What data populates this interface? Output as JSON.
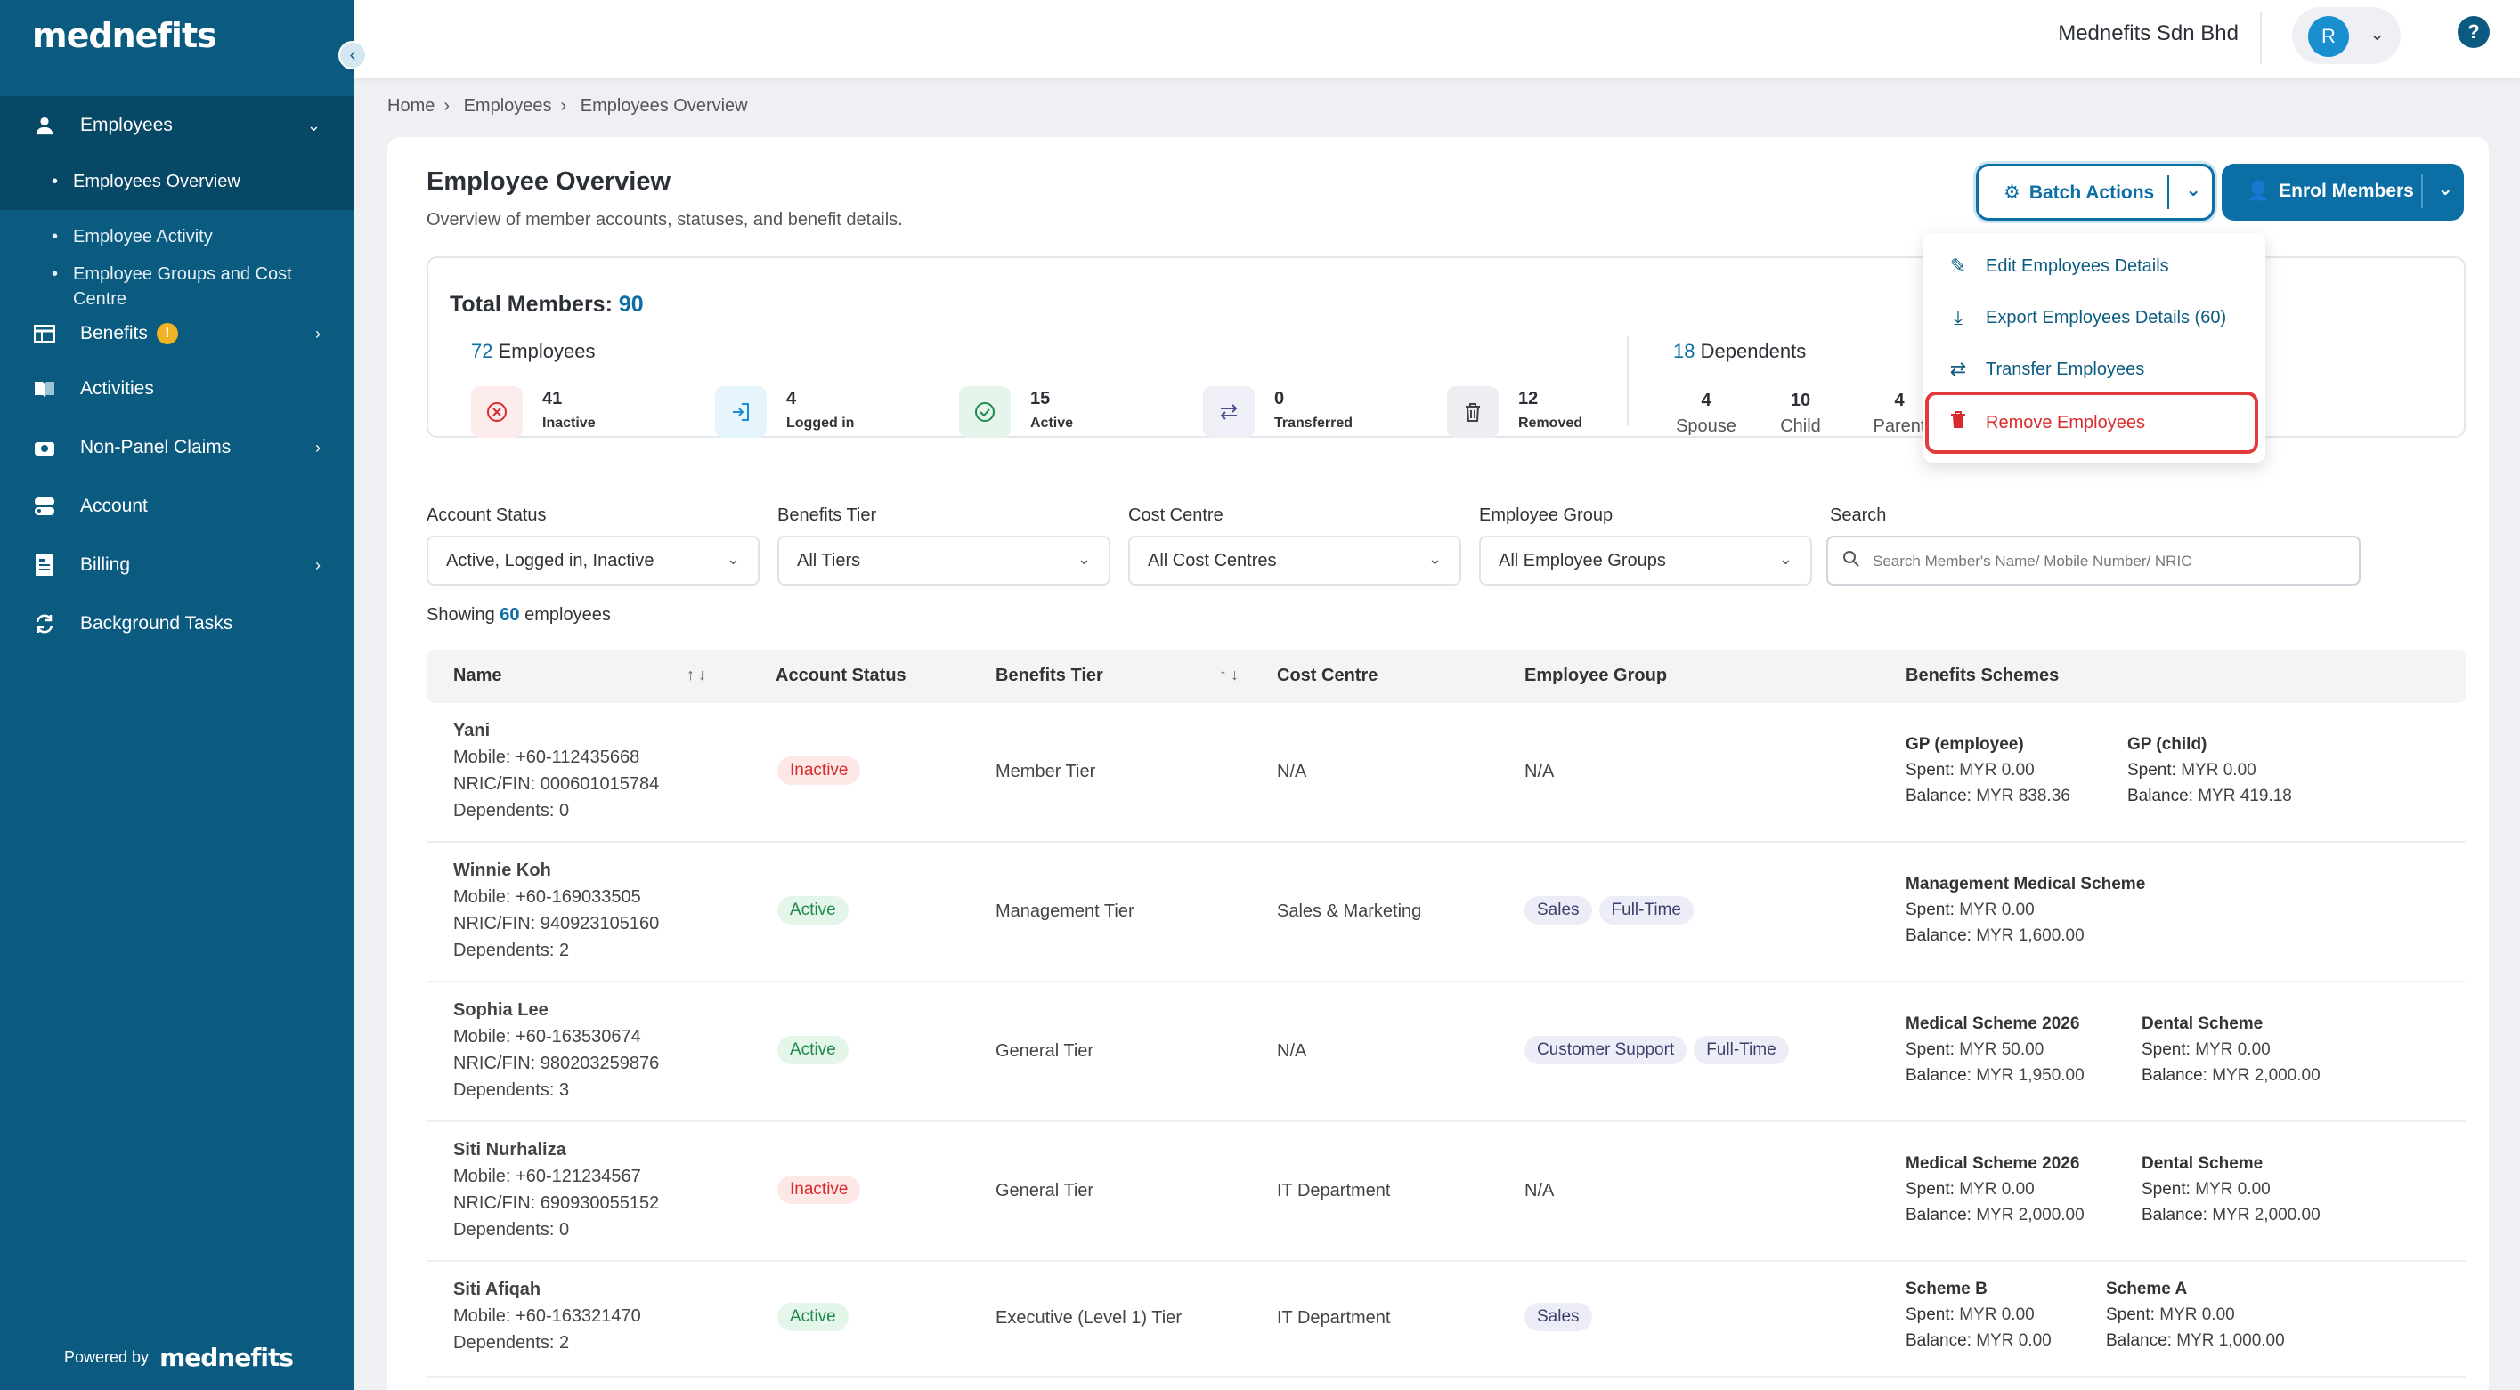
{
  "brand": {
    "logo_text": "mednefits",
    "powered_by": "Powered by",
    "powered_logo": "mednefits"
  },
  "header": {
    "company": "Mednefits Sdn Bhd",
    "avatar_initial": "R"
  },
  "sidebar": {
    "items": [
      {
        "label": "Employees",
        "icon": "person-icon"
      },
      {
        "label": "Employees Overview"
      },
      {
        "label": "Employee Activity"
      },
      {
        "label": "Employee Groups and Cost Centre"
      },
      {
        "label": "Benefits",
        "badge": "!"
      },
      {
        "label": "Activities"
      },
      {
        "label": "Non-Panel Claims"
      },
      {
        "label": "Account"
      },
      {
        "label": "Billing"
      },
      {
        "label": "Background Tasks"
      }
    ]
  },
  "breadcrumb": [
    "Home",
    "Employees",
    "Employees Overview"
  ],
  "page": {
    "title": "Employee Overview",
    "subtitle": "Overview of member accounts, statuses, and benefit details.",
    "batch_label": "Batch Actions",
    "enrol_label": "Enrol Members"
  },
  "menu": {
    "items": [
      "Edit Employees Details",
      "Export Employees Details (60)",
      "Transfer Employees",
      "Remove Employees"
    ]
  },
  "stats": {
    "total_label": "Total Members:",
    "total": "90",
    "employees_num": "72",
    "employees_label": "Employees",
    "cards": [
      {
        "value": "41",
        "label": "Inactive"
      },
      {
        "value": "4",
        "label": "Logged in"
      },
      {
        "value": "15",
        "label": "Active"
      },
      {
        "value": "0",
        "label": "Transferred"
      },
      {
        "value": "12",
        "label": "Removed"
      }
    ],
    "dependents_num": "18",
    "dependents_label": "Dependents",
    "dependents": [
      {
        "value": "4",
        "label": "Spouse"
      },
      {
        "value": "10",
        "label": "Child"
      },
      {
        "value": "4",
        "label": "Parent"
      }
    ]
  },
  "filters": {
    "account_status": {
      "label": "Account Status",
      "value": "Active, Logged in, Inactive"
    },
    "benefits_tier": {
      "label": "Benefits Tier",
      "value": "All Tiers"
    },
    "cost_centre": {
      "label": "Cost Centre",
      "value": "All Cost Centres"
    },
    "employee_group": {
      "label": "Employee Group",
      "value": "All Employee Groups"
    },
    "search": {
      "label": "Search",
      "placeholder": "Search Member's Name/ Mobile Number/ NRIC"
    }
  },
  "showing": {
    "prefix": "Showing",
    "count": "60",
    "suffix": "employees"
  },
  "table": {
    "headers": [
      "Name",
      "Account Status",
      "Benefits Tier",
      "Cost Centre",
      "Employee Group",
      "Benefits Schemes"
    ],
    "rows": [
      {
        "name": "Yani",
        "mobile": "Mobile: +60-112435668",
        "nric": "NRIC/FIN: 000601015784",
        "dependents": "Dependents: 0",
        "status": "Inactive",
        "tier": "Member Tier",
        "cost_centre": "N/A",
        "group_text": "N/A",
        "schemes": [
          {
            "name": "GP (employee)",
            "spent": "Spent:",
            "spent_val": "MYR 0.00",
            "bal": "Balance:",
            "bal_val": "MYR 838.36"
          },
          {
            "name": "GP (child)",
            "spent": "Spent:",
            "spent_val": "MYR 0.00",
            "bal": "Balance:",
            "bal_val": "MYR 419.18"
          }
        ]
      },
      {
        "name": "Winnie Koh",
        "mobile": "Mobile: +60-169033505",
        "nric": "NRIC/FIN: 940923105160",
        "dependents": "Dependents: 2",
        "status": "Active",
        "tier": "Management Tier",
        "cost_centre": "Sales & Marketing",
        "tags": [
          "Sales",
          "Full-Time"
        ],
        "schemes": [
          {
            "name": "Management Medical Scheme",
            "spent": "Spent:",
            "spent_val": "MYR 0.00",
            "bal": "Balance:",
            "bal_val": "MYR 1,600.00"
          }
        ]
      },
      {
        "name": "Sophia Lee",
        "mobile": "Mobile: +60-163530674",
        "nric": "NRIC/FIN: 980203259876",
        "dependents": "Dependents: 3",
        "status": "Active",
        "tier": "General Tier",
        "cost_centre": "N/A",
        "tags": [
          "Customer Support",
          "Full-Time"
        ],
        "schemes": [
          {
            "name": "Medical Scheme 2026",
            "spent": "Spent:",
            "spent_val": "MYR 50.00",
            "bal": "Balance:",
            "bal_val": "MYR 1,950.00"
          },
          {
            "name": "Dental Scheme",
            "spent": "Spent:",
            "spent_val": "MYR 0.00",
            "bal": "Balance:",
            "bal_val": "MYR 2,000.00"
          }
        ]
      },
      {
        "name": "Siti Nurhaliza",
        "mobile": "Mobile: +60-121234567",
        "nric": "NRIC/FIN: 690930055152",
        "dependents": "Dependents: 0",
        "status": "Inactive",
        "tier": "General Tier",
        "cost_centre": "IT Department",
        "group_text": "N/A",
        "schemes": [
          {
            "name": "Medical Scheme 2026",
            "spent": "Spent:",
            "spent_val": "MYR 0.00",
            "bal": "Balance:",
            "bal_val": "MYR 2,000.00"
          },
          {
            "name": "Dental Scheme",
            "spent": "Spent:",
            "spent_val": "MYR 0.00",
            "bal": "Balance:",
            "bal_val": "MYR 2,000.00"
          }
        ]
      },
      {
        "name": "Siti Afiqah",
        "mobile": "Mobile: +60-163321470",
        "dependents": "Dependents: 2",
        "status": "Active",
        "tier": "Executive (Level 1) Tier",
        "cost_centre": "IT Department",
        "tags": [
          "Sales"
        ],
        "schemes": [
          {
            "name": "Scheme B",
            "spent": "Spent:",
            "spent_val": "MYR 0.00",
            "bal": "Balance:",
            "bal_val": "MYR 0.00"
          },
          {
            "name": "Scheme A",
            "spent": "Spent:",
            "spent_val": "MYR 0.00",
            "bal": "Balance:",
            "bal_val": "MYR 1,000.00"
          }
        ]
      }
    ]
  },
  "colors": {
    "sidebar": "#0b5a80",
    "accent": "#0b6fa6",
    "danger": "#d92b2b",
    "success": "#1f8a4c"
  }
}
